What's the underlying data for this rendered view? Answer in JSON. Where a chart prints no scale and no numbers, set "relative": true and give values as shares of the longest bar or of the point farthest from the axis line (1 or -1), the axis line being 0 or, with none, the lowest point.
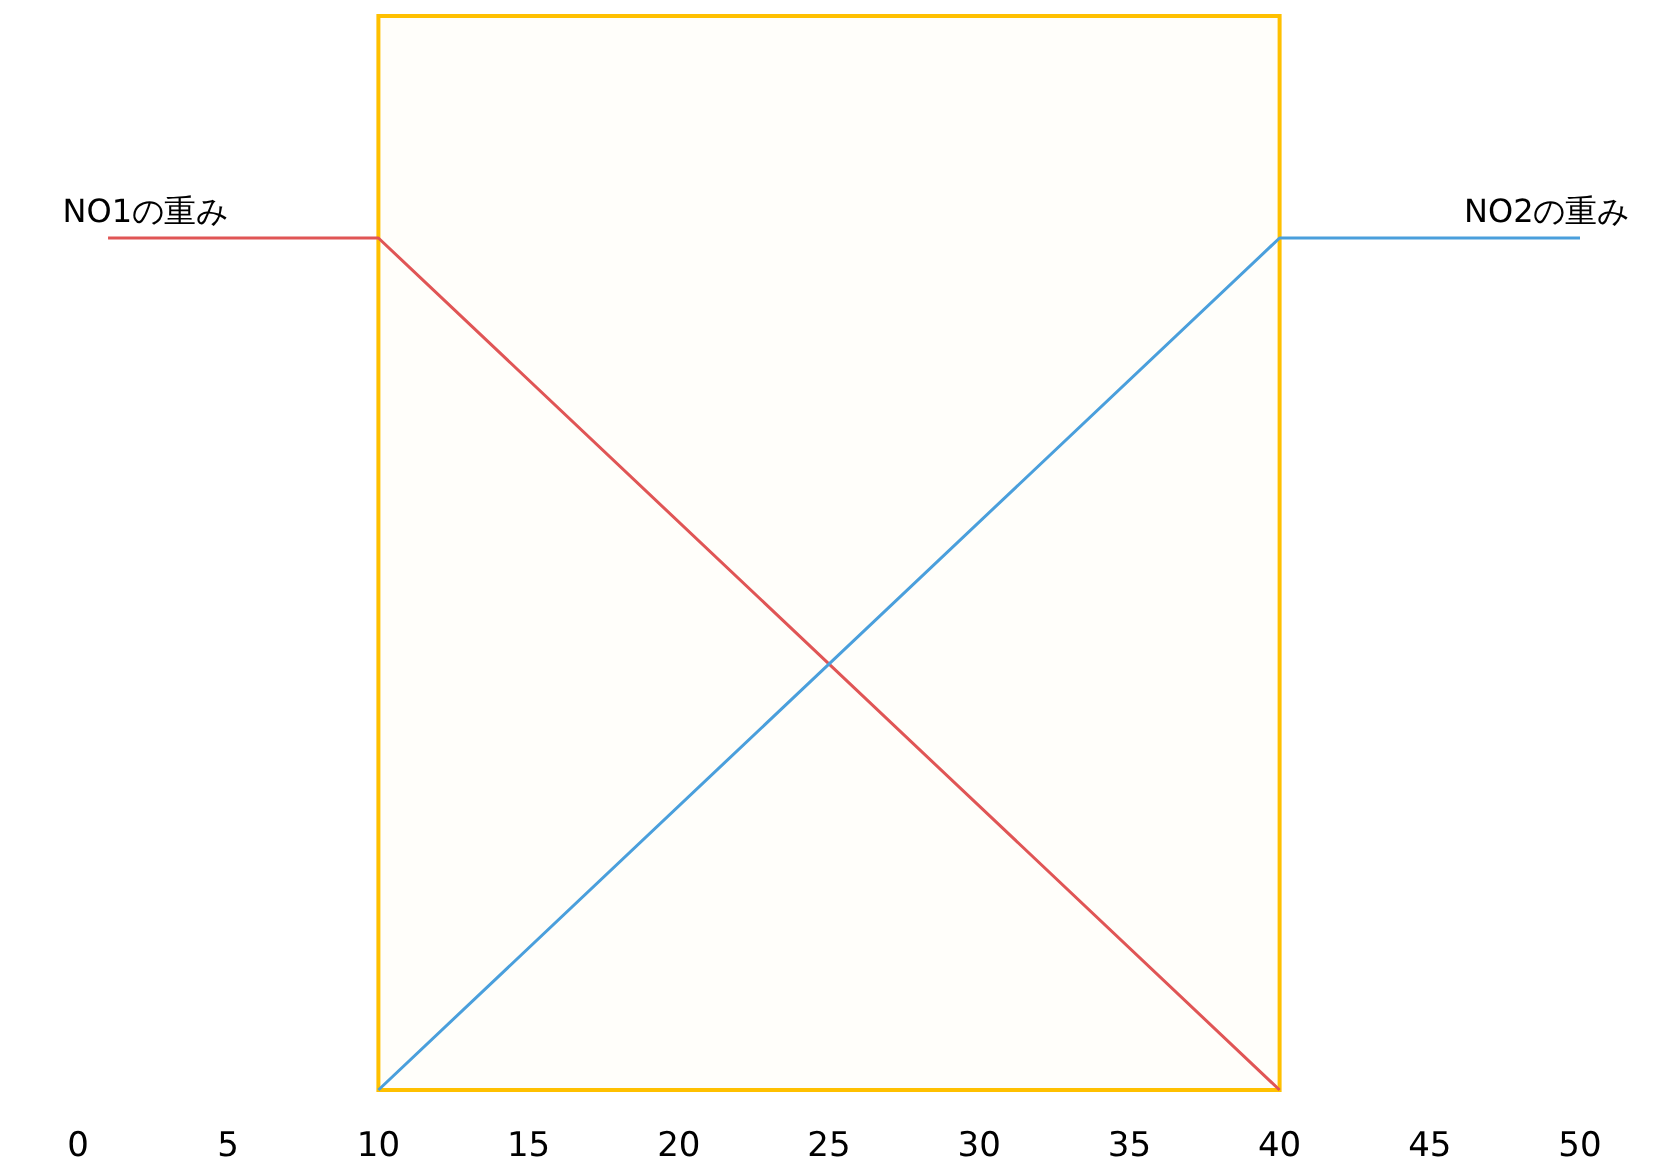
{
  "chart_data": {
    "type": "line",
    "relative": true,
    "series": [
      {
        "name": "NO1の重み",
        "color": "#e05555",
        "x": [
          1,
          10,
          40
        ],
        "values": [
          1,
          1,
          0
        ]
      },
      {
        "name": "NO2の重み",
        "color": "#4a9fdc",
        "x": [
          10,
          40,
          50
        ],
        "values": [
          0,
          1,
          1
        ]
      }
    ],
    "xlim": [
      0,
      50
    ],
    "xticks": [
      0,
      5,
      10,
      15,
      20,
      25,
      30,
      35,
      40,
      45,
      50
    ],
    "bands": [
      {
        "axis": "x",
        "from": 10,
        "to": 40,
        "color": "#ffc000"
      }
    ],
    "grid": false,
    "line_style": "solid"
  }
}
